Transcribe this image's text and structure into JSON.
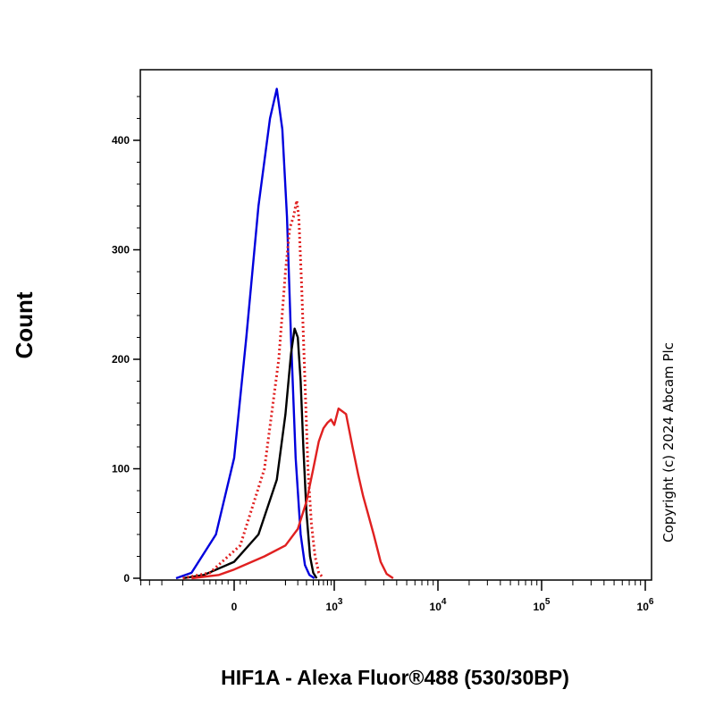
{
  "chart_data": {
    "type": "line",
    "title": "",
    "xlabel": "HIF1A - Alexa Fluor®488 (530/30BP)",
    "ylabel": "Count",
    "x_scale": "biexponential",
    "xlim": [
      -1000,
      1000000
    ],
    "ylim": [
      0,
      450
    ],
    "x_ticks": [
      {
        "value": 0,
        "label": "0",
        "sup": ""
      },
      {
        "value": 1000,
        "label": "10",
        "sup": "3"
      },
      {
        "value": 10000,
        "label": "10",
        "sup": "4"
      },
      {
        "value": 100000,
        "label": "10",
        "sup": "5"
      },
      {
        "value": 1000000,
        "label": "10",
        "sup": "6"
      }
    ],
    "y_ticks": [
      {
        "value": 0,
        "label": "0"
      },
      {
        "value": 100,
        "label": "100"
      },
      {
        "value": 200,
        "label": "200"
      },
      {
        "value": 300,
        "label": "300"
      },
      {
        "value": 400,
        "label": "400"
      }
    ],
    "grid": false,
    "legend": "none",
    "series": [
      {
        "color": "#0000dd",
        "style": "solid",
        "x": [
          -250,
          -150,
          -60,
          0,
          40,
          80,
          120,
          150,
          180,
          210,
          240,
          280,
          330,
          380,
          440,
          520
        ],
        "y": [
          0,
          5,
          40,
          110,
          220,
          340,
          420,
          447,
          410,
          330,
          220,
          110,
          40,
          12,
          3,
          0
        ]
      },
      {
        "color": "#000000",
        "style": "solid",
        "x": [
          -200,
          -100,
          0,
          80,
          150,
          200,
          240,
          270,
          300,
          330,
          360,
          400,
          450,
          500,
          560
        ],
        "y": [
          0,
          3,
          15,
          40,
          90,
          150,
          205,
          228,
          220,
          180,
          120,
          60,
          20,
          5,
          0
        ]
      },
      {
        "color": "#e02020",
        "style": "dotted",
        "x": [
          -200,
          -80,
          20,
          100,
          160,
          200,
          230,
          260,
          290,
          310,
          340,
          380,
          420,
          470,
          530,
          600,
          700
        ],
        "y": [
          0,
          5,
          30,
          100,
          200,
          280,
          320,
          330,
          345,
          330,
          270,
          180,
          100,
          50,
          20,
          5,
          0
        ]
      },
      {
        "color": "#e02020",
        "style": "solid",
        "x": [
          -150,
          -50,
          0,
          100,
          200,
          300,
          400,
          500,
          600,
          700,
          800,
          900,
          1000,
          1100,
          1300,
          1500,
          1700,
          1900,
          2100,
          2400,
          2800,
          3200,
          3700
        ],
        "y": [
          0,
          3,
          8,
          20,
          30,
          45,
          70,
          100,
          125,
          137,
          142,
          145,
          140,
          155,
          150,
          120,
          95,
          75,
          60,
          40,
          15,
          4,
          0
        ]
      }
    ],
    "annotations": [
      "Copyright (c) 2024 Abcam Plc"
    ]
  }
}
